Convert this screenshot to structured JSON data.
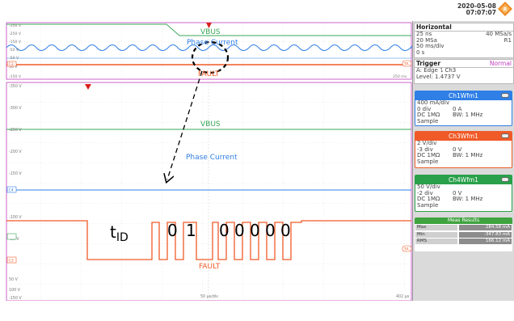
{
  "header": {
    "date": "2020-05-08",
    "time": "07:07:07"
  },
  "zoom_window": {
    "y_labels": [
      "-350 V",
      "-250 V",
      "-150 V",
      "-50 V",
      "-50 V",
      "50 V",
      "-150 V"
    ],
    "trace_labels": {
      "vbus": "VBUS",
      "phase": "Phase Current",
      "fault": "FAULT"
    },
    "markers": {
      "c3": "C3",
      "ta": "TA"
    },
    "right_label": "250 ms"
  },
  "main_window": {
    "y_labels": [
      "-350 V",
      "-300 V",
      "-250 V",
      "-200 V",
      "-150 V",
      "-100 V",
      "-50 V",
      "0 V",
      "50 V",
      "100 V",
      "-150 V"
    ],
    "trace_labels": {
      "vbus": "VBUS",
      "phase": "Phase Current",
      "fault": "FAULT"
    },
    "markers": {
      "c3": "C3",
      "c4": "C4",
      "ta": "TA"
    },
    "x_center_label": "50 µs/div",
    "x_right_label": "402 µs"
  },
  "annotation": {
    "tid_main": "t",
    "tid_sub": "ID",
    "bits": [
      "0",
      "1",
      "0",
      "0",
      "0",
      "0",
      "0"
    ]
  },
  "panel": {
    "horizontal": {
      "title": "Horizontal",
      "rows": [
        {
          "l": "25 ns",
          "r": "40 MSa/s"
        },
        {
          "l": "20 MSa",
          "r": "R1"
        },
        {
          "l": "50 ms/div",
          "r": ""
        },
        {
          "l": "0 s",
          "r": ""
        }
      ]
    },
    "trigger": {
      "title": "Trigger",
      "mode": "Normal",
      "source_line": "A:   Edge  ⮧ Ch3",
      "level": "Level: 1.4737 V"
    },
    "ch1": {
      "title": "Ch1Wfm1",
      "color": "#2f7fe6",
      "rows": [
        {
          "a": "400 mA/div",
          "b": ""
        },
        {
          "a": "0 div",
          "b": "0 A"
        },
        {
          "a": "DC 1MΩ",
          "b": "BW: 1 MHz"
        },
        {
          "a": "Sample",
          "b": ""
        }
      ]
    },
    "ch3": {
      "title": "Ch3Wfm1",
      "color": "#f05a28",
      "rows": [
        {
          "a": "2 V/div",
          "b": ""
        },
        {
          "a": "-3 div",
          "b": "0 V"
        },
        {
          "a": "DC 1MΩ",
          "b": "BW: 1 MHz"
        },
        {
          "a": "Sample",
          "b": ""
        }
      ]
    },
    "ch4": {
      "title": "Ch4Wfm1",
      "color": "#2aa04a",
      "rows": [
        {
          "a": "50 V/div",
          "b": ""
        },
        {
          "a": "-2 div",
          "b": "0 V"
        },
        {
          "a": "DC 1MΩ",
          "b": "BW: 1 MHz"
        },
        {
          "a": "Sample",
          "b": ""
        }
      ]
    },
    "meas": {
      "title": "Meas Results",
      "rows": [
        {
          "k": "Max",
          "v": "284.58 mA"
        },
        {
          "k": "Min",
          "v": "-347.83 mA"
        },
        {
          "k": "RMS",
          "v": "166.12 mA"
        }
      ]
    }
  }
}
